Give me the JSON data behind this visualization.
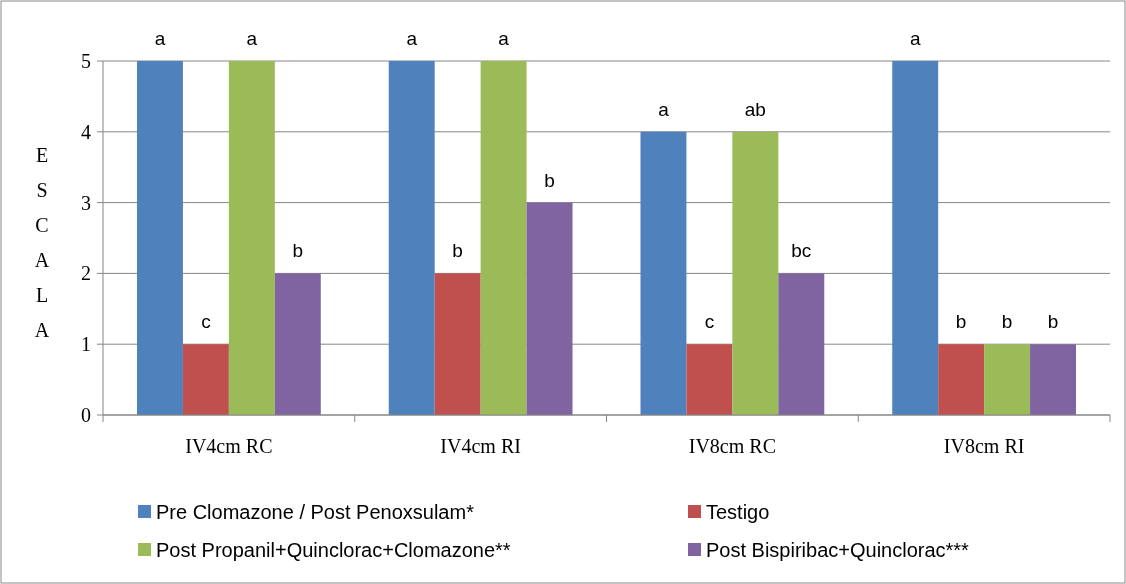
{
  "chart_data": {
    "type": "bar",
    "ylabel": "ESCALA",
    "categories": [
      "IV4cm RC",
      "IV4cm RI",
      "IV8cm RC",
      "IV8cm RI"
    ],
    "series": [
      {
        "name": "Pre Clomazone / Post Penoxsulam*",
        "color": "#4f81bd",
        "values": [
          5,
          5,
          4,
          5
        ],
        "value_labels": [
          "a",
          "a",
          "a",
          "a"
        ]
      },
      {
        "name": "Testigo",
        "color": "#c0504d",
        "values": [
          1,
          2,
          1,
          1
        ],
        "value_labels": [
          "c",
          "b",
          "c",
          "b"
        ]
      },
      {
        "name": "Post Propanil+Quinclorac+Clomazone**",
        "color": "#9bbb59",
        "values": [
          5,
          5,
          4,
          1
        ],
        "value_labels": [
          "a",
          "a",
          "ab",
          "b"
        ]
      },
      {
        "name": "Post Bispiribac+Quinclorac***",
        "color": "#8064a2",
        "values": [
          2,
          3,
          2,
          1
        ],
        "value_labels": [
          "b",
          "b",
          "bc",
          "b"
        ]
      }
    ],
    "ylim": [
      0,
      5
    ],
    "yticks": [
      0,
      1,
      2,
      3,
      4,
      5
    ],
    "grid": "y",
    "legend": "bottom"
  }
}
